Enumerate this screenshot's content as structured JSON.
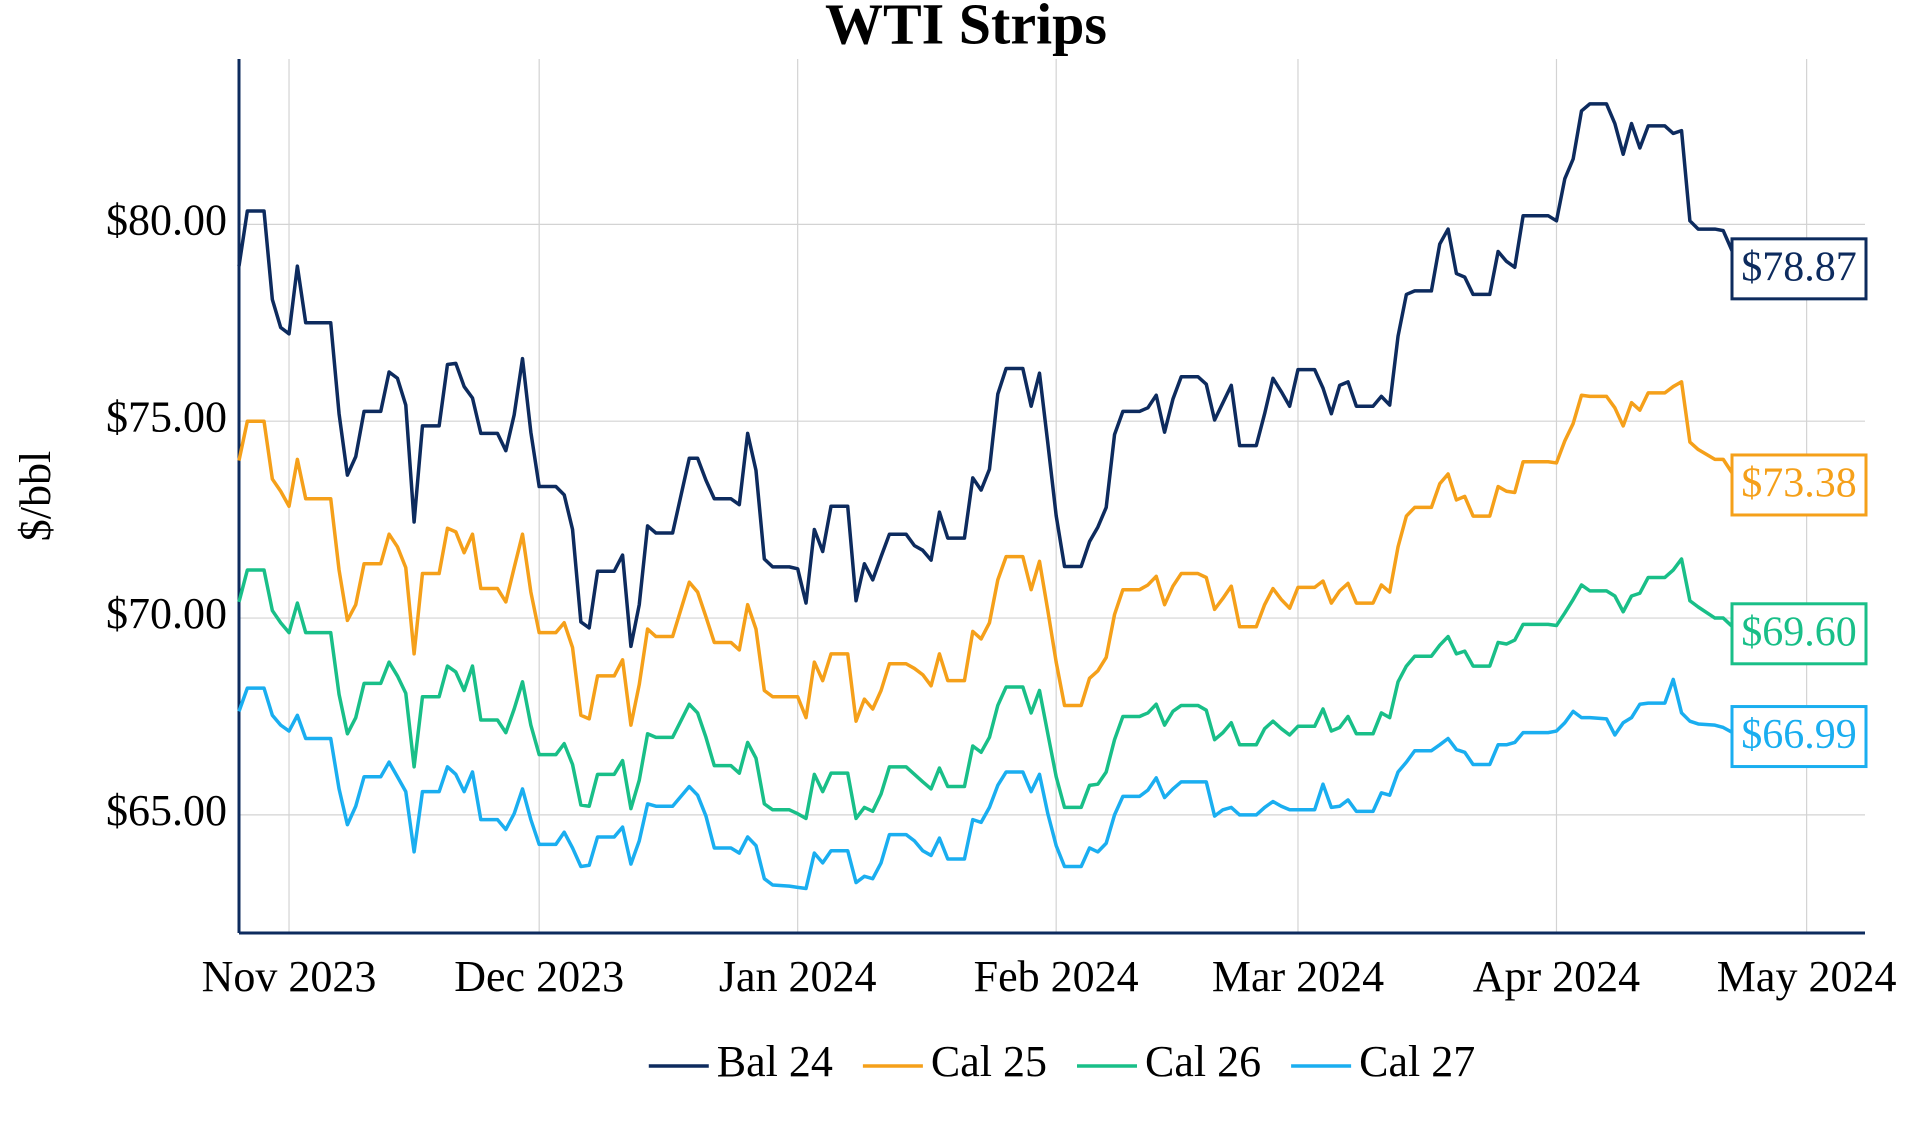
{
  "chart_data": {
    "type": "line",
    "title": "WTI Strips",
    "ylabel": "$/bbl",
    "x": [
      "2023-10-26",
      "2023-10-27",
      "2023-10-29",
      "2023-10-30",
      "2023-10-31",
      "2023-11-01",
      "2023-11-02",
      "2023-11-03",
      "2023-11-06",
      "2023-11-07",
      "2023-11-08",
      "2023-11-09",
      "2023-11-10",
      "2023-11-12",
      "2023-11-13",
      "2023-11-14",
      "2023-11-15",
      "2023-11-16",
      "2023-11-17",
      "2023-11-19",
      "2023-11-20",
      "2023-11-21",
      "2023-11-22",
      "2023-11-23",
      "2023-11-24",
      "2023-11-26",
      "2023-11-27",
      "2023-11-28",
      "2023-11-29",
      "2023-11-30",
      "2023-12-01",
      "2023-12-03",
      "2023-12-04",
      "2023-12-05",
      "2023-12-06",
      "2023-12-07",
      "2023-12-08",
      "2023-12-10",
      "2023-12-11",
      "2023-12-12",
      "2023-12-13",
      "2023-12-14",
      "2023-12-15",
      "2023-12-17",
      "2023-12-19",
      "2023-12-20",
      "2023-12-21",
      "2023-12-22",
      "2023-12-24",
      "2023-12-25",
      "2023-12-26",
      "2023-12-27",
      "2023-12-28",
      "2023-12-29",
      "2023-12-31",
      "2024-01-01",
      "2024-01-02",
      "2024-01-03",
      "2024-01-04",
      "2024-01-05",
      "2024-01-07",
      "2024-01-08",
      "2024-01-09",
      "2024-01-10",
      "2024-01-11",
      "2024-01-12",
      "2024-01-14",
      "2024-01-15",
      "2024-01-16",
      "2024-01-17",
      "2024-01-18",
      "2024-01-19",
      "2024-01-21",
      "2024-01-22",
      "2024-01-23",
      "2024-01-24",
      "2024-01-25",
      "2024-01-26",
      "2024-01-28",
      "2024-01-29",
      "2024-01-30",
      "2024-01-31",
      "2024-02-01",
      "2024-02-02",
      "2024-02-04",
      "2024-02-05",
      "2024-02-06",
      "2024-02-07",
      "2024-02-08",
      "2024-02-09",
      "2024-02-11",
      "2024-02-12",
      "2024-02-13",
      "2024-02-14",
      "2024-02-15",
      "2024-02-16",
      "2024-02-18",
      "2024-02-19",
      "2024-02-20",
      "2024-02-21",
      "2024-02-22",
      "2024-02-23",
      "2024-02-25",
      "2024-02-26",
      "2024-02-27",
      "2024-02-28",
      "2024-02-29",
      "2024-03-01",
      "2024-03-03",
      "2024-03-04",
      "2024-03-05",
      "2024-03-06",
      "2024-03-07",
      "2024-03-08",
      "2024-03-10",
      "2024-03-11",
      "2024-03-12",
      "2024-03-13",
      "2024-03-14",
      "2024-03-15",
      "2024-03-17",
      "2024-03-18",
      "2024-03-19",
      "2024-03-20",
      "2024-03-21",
      "2024-03-22",
      "2024-03-24",
      "2024-03-25",
      "2024-03-26",
      "2024-03-27",
      "2024-03-28",
      "2024-03-31",
      "2024-04-01",
      "2024-04-02",
      "2024-04-03",
      "2024-04-04",
      "2024-04-05",
      "2024-04-07",
      "2024-04-08",
      "2024-04-09",
      "2024-04-10",
      "2024-04-11",
      "2024-04-12",
      "2024-04-14",
      "2024-04-15",
      "2024-04-16",
      "2024-04-17",
      "2024-04-18",
      "2024-04-20",
      "2024-04-21",
      "2024-04-23"
    ],
    "series": [
      {
        "name": "Bal 24",
        "color": "#0d2b5e",
        "end_label": "$78.87",
        "values": [
          78.94,
          80.34,
          80.34,
          78.09,
          77.38,
          77.22,
          78.94,
          77.5,
          77.5,
          75.19,
          73.63,
          74.1,
          75.25,
          75.25,
          76.25,
          76.09,
          75.41,
          72.44,
          74.88,
          74.88,
          76.44,
          76.47,
          75.88,
          75.59,
          74.69,
          74.69,
          74.25,
          75.16,
          76.59,
          74.72,
          73.34,
          73.34,
          73.13,
          72.25,
          69.9,
          69.75,
          71.19,
          71.19,
          71.6,
          69.28,
          70.34,
          72.34,
          72.16,
          72.16,
          74.06,
          74.06,
          73.5,
          73.03,
          73.03,
          72.88,
          74.69,
          73.75,
          71.5,
          71.3,
          71.3,
          71.25,
          70.38,
          72.25,
          71.69,
          72.84,
          72.84,
          70.44,
          71.38,
          70.97,
          71.56,
          72.13,
          72.13,
          71.84,
          71.72,
          71.47,
          72.69,
          72.03,
          72.03,
          73.56,
          73.25,
          73.78,
          75.69,
          76.34,
          76.34,
          75.38,
          76.22,
          74.44,
          72.6,
          71.31,
          71.31,
          71.94,
          72.31,
          72.81,
          74.66,
          75.25,
          75.25,
          75.34,
          75.66,
          74.72,
          75.56,
          76.13,
          76.13,
          75.94,
          75.03,
          75.47,
          75.91,
          74.38,
          74.38,
          75.19,
          76.09,
          75.75,
          75.38,
          76.31,
          76.31,
          75.84,
          75.19,
          75.91,
          76.0,
          75.38,
          75.38,
          75.63,
          75.41,
          77.16,
          78.22,
          78.31,
          78.31,
          79.5,
          79.88,
          78.75,
          78.66,
          78.22,
          78.22,
          79.31,
          79.06,
          78.91,
          80.22,
          80.22,
          80.09,
          81.16,
          81.66,
          82.88,
          83.06,
          83.06,
          82.56,
          81.78,
          82.56,
          81.94,
          82.5,
          82.5,
          82.31,
          82.38,
          80.09,
          79.88,
          79.88,
          79.84,
          78.87
        ]
      },
      {
        "name": "Cal 25",
        "color": "#f5a01a",
        "end_label": "$73.38",
        "values": [
          74.0,
          75.0,
          75.0,
          73.53,
          73.22,
          72.84,
          74.03,
          73.03,
          73.03,
          71.22,
          69.94,
          70.34,
          71.38,
          71.38,
          72.13,
          71.81,
          71.28,
          69.09,
          71.13,
          71.13,
          72.28,
          72.19,
          71.66,
          72.13,
          70.75,
          70.75,
          70.41,
          71.28,
          72.13,
          70.66,
          69.63,
          69.63,
          69.88,
          69.25,
          67.53,
          67.44,
          68.53,
          68.53,
          68.94,
          67.28,
          68.31,
          69.72,
          69.53,
          69.53,
          70.91,
          70.66,
          70.03,
          69.38,
          69.38,
          69.19,
          70.34,
          69.72,
          68.16,
          68.0,
          68.0,
          68.0,
          67.47,
          68.88,
          68.41,
          69.09,
          69.09,
          67.38,
          67.94,
          67.69,
          68.16,
          68.84,
          68.84,
          68.72,
          68.56,
          68.28,
          69.09,
          68.41,
          68.41,
          69.66,
          69.47,
          69.88,
          70.97,
          71.56,
          71.56,
          70.72,
          71.44,
          70.19,
          68.88,
          67.78,
          67.78,
          68.47,
          68.66,
          69.0,
          70.09,
          70.72,
          70.72,
          70.84,
          71.06,
          70.34,
          70.81,
          71.13,
          71.13,
          71.03,
          70.22,
          70.5,
          70.81,
          69.78,
          69.78,
          70.34,
          70.75,
          70.47,
          70.25,
          70.78,
          70.78,
          70.94,
          70.38,
          70.69,
          70.88,
          70.38,
          70.38,
          70.84,
          70.66,
          71.81,
          72.59,
          72.81,
          72.81,
          73.41,
          73.66,
          73.0,
          73.09,
          72.59,
          72.59,
          73.34,
          73.22,
          73.19,
          73.97,
          73.97,
          73.94,
          74.5,
          74.94,
          75.66,
          75.63,
          75.63,
          75.34,
          74.88,
          75.47,
          75.28,
          75.72,
          75.72,
          75.88,
          76.0,
          74.47,
          74.28,
          74.03,
          74.03,
          73.38
        ]
      },
      {
        "name": "Cal 26",
        "color": "#19bf88",
        "end_label": "$69.60",
        "values": [
          70.41,
          71.22,
          71.22,
          70.19,
          69.88,
          69.63,
          70.38,
          69.63,
          69.63,
          68.06,
          67.06,
          67.47,
          68.34,
          68.34,
          68.88,
          68.53,
          68.09,
          66.22,
          68.0,
          68.0,
          68.78,
          68.63,
          68.16,
          68.78,
          67.41,
          67.41,
          67.09,
          67.69,
          68.38,
          67.28,
          66.53,
          66.53,
          66.81,
          66.28,
          65.25,
          65.22,
          66.03,
          66.03,
          66.38,
          65.16,
          65.88,
          67.06,
          66.97,
          66.97,
          67.81,
          67.59,
          66.97,
          66.25,
          66.25,
          66.06,
          66.84,
          66.44,
          65.28,
          65.13,
          65.13,
          65.03,
          64.91,
          66.03,
          65.59,
          66.06,
          66.06,
          64.91,
          65.19,
          65.09,
          65.53,
          66.22,
          66.22,
          66.03,
          65.84,
          65.66,
          66.19,
          65.72,
          65.72,
          66.75,
          66.59,
          66.97,
          67.78,
          68.25,
          68.25,
          67.59,
          68.16,
          67.06,
          65.97,
          65.19,
          65.19,
          65.75,
          65.78,
          66.09,
          66.91,
          67.5,
          67.5,
          67.59,
          67.81,
          67.28,
          67.63,
          67.78,
          67.78,
          67.66,
          66.91,
          67.09,
          67.34,
          66.78,
          66.78,
          67.19,
          67.38,
          67.19,
          67.03,
          67.25,
          67.25,
          67.69,
          67.13,
          67.22,
          67.5,
          67.06,
          67.06,
          67.59,
          67.47,
          68.38,
          68.78,
          69.03,
          69.03,
          69.31,
          69.53,
          69.09,
          69.16,
          68.78,
          68.78,
          69.38,
          69.34,
          69.44,
          69.84,
          69.84,
          69.81,
          70.13,
          70.47,
          70.84,
          70.69,
          70.69,
          70.56,
          70.16,
          70.56,
          70.63,
          71.03,
          71.03,
          71.22,
          71.5,
          70.44,
          70.28,
          70.0,
          70.0,
          69.6
        ]
      },
      {
        "name": "Cal 27",
        "color": "#1aaef0",
        "end_label": "$66.99",
        "values": [
          67.63,
          68.22,
          68.22,
          67.53,
          67.28,
          67.13,
          67.53,
          66.94,
          66.94,
          65.66,
          64.75,
          65.22,
          65.97,
          65.97,
          66.34,
          65.97,
          65.59,
          64.06,
          65.59,
          65.59,
          66.22,
          66.03,
          65.59,
          66.09,
          64.88,
          64.88,
          64.63,
          65.03,
          65.66,
          64.88,
          64.25,
          64.25,
          64.56,
          64.16,
          63.69,
          63.72,
          64.44,
          64.44,
          64.69,
          63.75,
          64.34,
          65.28,
          65.22,
          65.22,
          65.72,
          65.5,
          64.97,
          64.16,
          64.16,
          64.03,
          64.44,
          64.22,
          63.38,
          63.22,
          63.19,
          63.16,
          63.13,
          64.03,
          63.78,
          64.09,
          64.09,
          63.28,
          63.44,
          63.38,
          63.78,
          64.5,
          64.5,
          64.34,
          64.09,
          63.97,
          64.41,
          63.88,
          63.88,
          64.88,
          64.81,
          65.19,
          65.75,
          66.09,
          66.09,
          65.59,
          66.03,
          65.03,
          64.22,
          63.69,
          63.69,
          64.16,
          64.06,
          64.28,
          65.0,
          65.47,
          65.47,
          65.63,
          65.94,
          65.44,
          65.66,
          65.84,
          65.84,
          65.84,
          64.97,
          65.13,
          65.19,
          65.0,
          65.0,
          65.19,
          65.34,
          65.22,
          65.13,
          65.13,
          65.13,
          65.78,
          65.19,
          65.22,
          65.38,
          65.09,
          65.09,
          65.56,
          65.5,
          66.09,
          66.34,
          66.63,
          66.63,
          66.78,
          66.94,
          66.66,
          66.59,
          66.28,
          66.28,
          66.78,
          66.78,
          66.84,
          67.09,
          67.09,
          67.13,
          67.34,
          67.63,
          67.47,
          67.47,
          67.44,
          67.03,
          67.34,
          67.47,
          67.81,
          67.84,
          67.84,
          68.44,
          67.59,
          67.38,
          67.31,
          67.28,
          67.22,
          66.99
        ]
      }
    ],
    "xlim": [
      "2023-10-26",
      "2024-05-08"
    ],
    "xticks": [
      {
        "value": "2023-11-01",
        "label": "Nov 2023"
      },
      {
        "value": "2023-12-01",
        "label": "Dec 2023"
      },
      {
        "value": "2024-01-01",
        "label": "Jan 2024"
      },
      {
        "value": "2024-02-01",
        "label": "Feb 2024"
      },
      {
        "value": "2024-03-01",
        "label": "Mar 2024"
      },
      {
        "value": "2024-04-01",
        "label": "Apr 2024"
      },
      {
        "value": "2024-05-01",
        "label": "May 2024"
      }
    ],
    "ylim": [
      62,
      84.2
    ],
    "yticks": [
      {
        "value": 65,
        "label": "$65.00"
      },
      {
        "value": 70,
        "label": "$70.00"
      },
      {
        "value": 75,
        "label": "$75.00"
      },
      {
        "value": 80,
        "label": "$80.00"
      }
    ],
    "grid": true,
    "legend": "bottom"
  }
}
